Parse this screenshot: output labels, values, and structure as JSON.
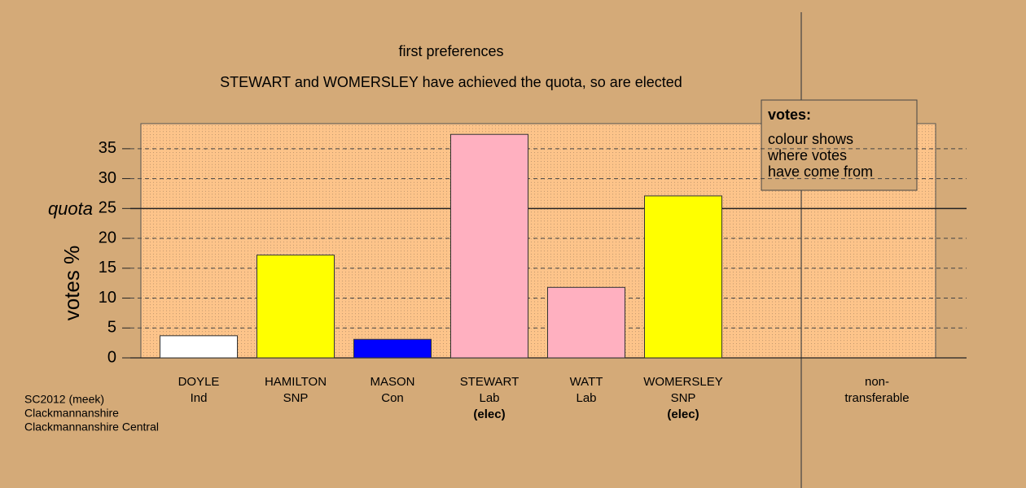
{
  "chart_data": {
    "type": "bar",
    "title": "first preferences",
    "subtitle": "STEWART and WOMERSLEY have achieved the quota, so are elected",
    "y_label": "votes %",
    "quota_label": "quota",
    "quota": 25,
    "categories": [
      "DOYLE",
      "HAMILTON",
      "MASON",
      "STEWART",
      "WATT",
      "WOMERSLEY",
      "non-"
    ],
    "sublabels": [
      "Ind",
      "SNP",
      "Con",
      "Lab",
      "Lab",
      "SNP",
      "transferable"
    ],
    "notes": [
      null,
      null,
      null,
      "(elec)",
      null,
      "(elec)",
      null
    ],
    "values": [
      3.7,
      17.2,
      3.1,
      37.4,
      11.8,
      27.1,
      0
    ],
    "colors": [
      "#ffffff",
      "#ffff00",
      "#0000ff",
      "#ffb0c0",
      "#ffb0c0",
      "#ffff00",
      "#ffffff"
    ],
    "ylim": [
      0,
      39.2
    ],
    "yticks": [
      0,
      5,
      10,
      15,
      20,
      25,
      30,
      35
    ],
    "grid": true,
    "legend": {
      "title": "votes:",
      "lines": [
        "colour shows",
        "where votes",
        "have come from"
      ]
    },
    "footer": [
      "SC2012 (meek)",
      "Clackmannanshire",
      "Clackmannanshire Central"
    ]
  }
}
